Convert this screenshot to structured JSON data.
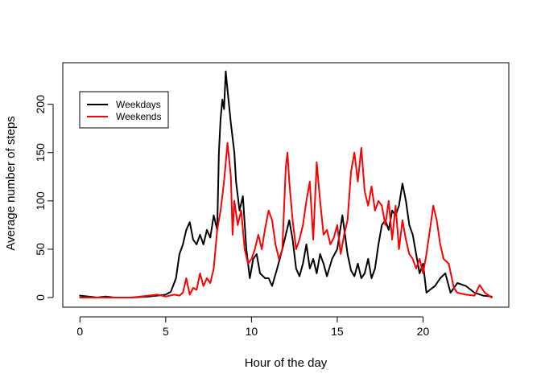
{
  "chart_data": {
    "type": "line",
    "title": "",
    "xlabel": "Hour of the day",
    "ylabel": "Average number of steps",
    "xlim": [
      -1,
      25
    ],
    "ylim": [
      -10,
      243
    ],
    "xticks": [
      0,
      5,
      10,
      15,
      20
    ],
    "yticks": [
      0,
      50,
      100,
      150,
      200
    ],
    "grid": false,
    "legend_position": "top-left",
    "series": [
      {
        "name": "Weekdays",
        "color": "#000000",
        "points": [
          [
            0,
            2
          ],
          [
            0.5,
            1
          ],
          [
            1,
            0
          ],
          [
            1.5,
            1
          ],
          [
            2,
            0
          ],
          [
            3,
            0
          ],
          [
            4,
            1
          ],
          [
            4.5,
            2
          ],
          [
            5,
            3
          ],
          [
            5.3,
            6
          ],
          [
            5.6,
            20
          ],
          [
            5.8,
            45
          ],
          [
            6.0,
            55
          ],
          [
            6.2,
            70
          ],
          [
            6.4,
            78
          ],
          [
            6.6,
            60
          ],
          [
            6.8,
            55
          ],
          [
            7.0,
            65
          ],
          [
            7.2,
            55
          ],
          [
            7.4,
            70
          ],
          [
            7.6,
            62
          ],
          [
            7.8,
            85
          ],
          [
            8.0,
            70
          ],
          [
            8.1,
            150
          ],
          [
            8.2,
            185
          ],
          [
            8.3,
            205
          ],
          [
            8.4,
            195
          ],
          [
            8.5,
            234
          ],
          [
            8.6,
            215
          ],
          [
            8.8,
            180
          ],
          [
            9.0,
            150
          ],
          [
            9.1,
            120
          ],
          [
            9.3,
            90
          ],
          [
            9.5,
            105
          ],
          [
            9.7,
            50
          ],
          [
            9.9,
            20
          ],
          [
            10.1,
            40
          ],
          [
            10.3,
            45
          ],
          [
            10.5,
            25
          ],
          [
            10.8,
            20
          ],
          [
            11,
            20
          ],
          [
            11.2,
            12
          ],
          [
            11.5,
            30
          ],
          [
            11.8,
            50
          ],
          [
            12,
            65
          ],
          [
            12.2,
            80
          ],
          [
            12.4,
            60
          ],
          [
            12.6,
            30
          ],
          [
            12.8,
            22
          ],
          [
            13,
            35
          ],
          [
            13.2,
            55
          ],
          [
            13.4,
            30
          ],
          [
            13.6,
            40
          ],
          [
            13.8,
            25
          ],
          [
            14,
            45
          ],
          [
            14.2,
            35
          ],
          [
            14.4,
            22
          ],
          [
            14.7,
            40
          ],
          [
            15,
            50
          ],
          [
            15.3,
            85
          ],
          [
            15.6,
            45
          ],
          [
            15.8,
            28
          ],
          [
            16,
            22
          ],
          [
            16.2,
            35
          ],
          [
            16.4,
            20
          ],
          [
            16.6,
            25
          ],
          [
            16.8,
            40
          ],
          [
            17,
            20
          ],
          [
            17.2,
            30
          ],
          [
            17.4,
            55
          ],
          [
            17.6,
            75
          ],
          [
            17.8,
            80
          ],
          [
            18,
            70
          ],
          [
            18.2,
            90
          ],
          [
            18.4,
            85
          ],
          [
            18.6,
            95
          ],
          [
            18.8,
            118
          ],
          [
            19.0,
            100
          ],
          [
            19.2,
            75
          ],
          [
            19.4,
            65
          ],
          [
            19.6,
            45
          ],
          [
            19.8,
            25
          ],
          [
            20.0,
            35
          ],
          [
            20.2,
            5
          ],
          [
            20.4,
            8
          ],
          [
            20.7,
            12
          ],
          [
            21,
            20
          ],
          [
            21.3,
            25
          ],
          [
            21.6,
            5
          ],
          [
            22,
            15
          ],
          [
            22.5,
            12
          ],
          [
            23,
            5
          ],
          [
            23.5,
            2
          ],
          [
            24,
            1
          ]
        ]
      },
      {
        "name": "Weekends",
        "color": "#ff0000",
        "points": [
          [
            0,
            0
          ],
          [
            1,
            0
          ],
          [
            2,
            0
          ],
          [
            3,
            0
          ],
          [
            4,
            2
          ],
          [
            4.5,
            3
          ],
          [
            5,
            1
          ],
          [
            5.5,
            3
          ],
          [
            5.8,
            2
          ],
          [
            6.0,
            5
          ],
          [
            6.2,
            20
          ],
          [
            6.4,
            3
          ],
          [
            6.6,
            10
          ],
          [
            6.8,
            8
          ],
          [
            7.0,
            25
          ],
          [
            7.2,
            12
          ],
          [
            7.4,
            20
          ],
          [
            7.6,
            15
          ],
          [
            7.8,
            30
          ],
          [
            8.0,
            70
          ],
          [
            8.2,
            90
          ],
          [
            8.4,
            120
          ],
          [
            8.6,
            160
          ],
          [
            8.8,
            125
          ],
          [
            8.9,
            65
          ],
          [
            9.0,
            100
          ],
          [
            9.2,
            75
          ],
          [
            9.4,
            90
          ],
          [
            9.6,
            50
          ],
          [
            9.8,
            35
          ],
          [
            10.0,
            40
          ],
          [
            10.2,
            50
          ],
          [
            10.4,
            65
          ],
          [
            10.6,
            50
          ],
          [
            10.8,
            72
          ],
          [
            11.0,
            90
          ],
          [
            11.2,
            80
          ],
          [
            11.4,
            55
          ],
          [
            11.6,
            40
          ],
          [
            11.8,
            50
          ],
          [
            12.0,
            135
          ],
          [
            12.1,
            150
          ],
          [
            12.2,
            120
          ],
          [
            12.4,
            80
          ],
          [
            12.6,
            50
          ],
          [
            12.8,
            60
          ],
          [
            13,
            75
          ],
          [
            13.2,
            100
          ],
          [
            13.4,
            120
          ],
          [
            13.6,
            60
          ],
          [
            13.8,
            140
          ],
          [
            14,
            100
          ],
          [
            14.2,
            65
          ],
          [
            14.4,
            70
          ],
          [
            14.6,
            55
          ],
          [
            14.8,
            62
          ],
          [
            15,
            75
          ],
          [
            15.2,
            45
          ],
          [
            15.4,
            65
          ],
          [
            15.6,
            80
          ],
          [
            15.8,
            130
          ],
          [
            16,
            150
          ],
          [
            16.2,
            120
          ],
          [
            16.4,
            155
          ],
          [
            16.6,
            110
          ],
          [
            16.8,
            95
          ],
          [
            17,
            115
          ],
          [
            17.2,
            90
          ],
          [
            17.4,
            100
          ],
          [
            17.6,
            95
          ],
          [
            17.8,
            75
          ],
          [
            18.0,
            100
          ],
          [
            18.2,
            60
          ],
          [
            18.4,
            95
          ],
          [
            18.6,
            50
          ],
          [
            18.8,
            80
          ],
          [
            19.0,
            60
          ],
          [
            19.2,
            45
          ],
          [
            19.4,
            40
          ],
          [
            19.6,
            30
          ],
          [
            19.8,
            40
          ],
          [
            20.0,
            25
          ],
          [
            20.2,
            45
          ],
          [
            20.4,
            70
          ],
          [
            20.6,
            95
          ],
          [
            20.8,
            80
          ],
          [
            21.0,
            55
          ],
          [
            21.2,
            40
          ],
          [
            21.5,
            35
          ],
          [
            21.8,
            10
          ],
          [
            22.0,
            5
          ],
          [
            22.5,
            3
          ],
          [
            23.0,
            2
          ],
          [
            23.3,
            13
          ],
          [
            23.6,
            5
          ],
          [
            24,
            0
          ]
        ]
      }
    ]
  }
}
